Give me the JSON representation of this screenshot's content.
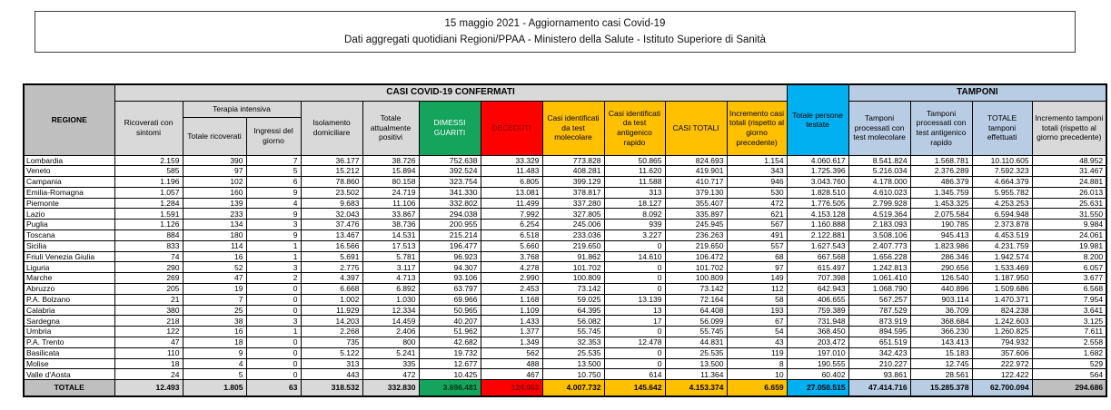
{
  "title_box": {
    "line1": "15 maggio 2021 - Aggiornamento casi Covid-19",
    "line2": "Dati aggregati quotidiani Regioni/PPAA - Ministero della Salute - Istituto Superiore di Sanità"
  },
  "colors": {
    "green": "#14a45c",
    "red": "#fe0000",
    "red_text": "#7f0000",
    "yellow": "#ffc000",
    "cyan": "#00b0f0",
    "light_blue": "#b8cce4",
    "gray_header": "#bfbfbf",
    "light_gray": "#d9d9d9"
  },
  "table": {
    "headers": {
      "regione": "REGIONE",
      "casi_band": "CASI COVID-19 CONFERMATI",
      "tamponi_band": "TAMPONI",
      "ricoverati": "Ricoverati con sintomi",
      "terapia_intensiva": "Terapia intensiva",
      "ti_totale": "Totale ricoverati",
      "ti_ingressi": "Ingressi del giorno",
      "isolamento": "Isolamento domiciliare",
      "attualmente_positivi": "Totale attualmente positivi",
      "dimessi_guariti": "DIMESSI GUARITI",
      "deceduti": "DECEDUTI",
      "casi_molecolare": "Casi identificati da test molecolare",
      "casi_antigenico": "Casi identificati da test antigenico rapido",
      "casi_totali": "CASI TOTALI",
      "incremento_casi": "Incremento casi totali (rispetto al giorno precedente)",
      "persone_testate": "Totale persone testate",
      "tamponi_molecolare": "Tamponi processati con test molecolare",
      "tamponi_antigenico": "Tamponi processati con test antigenico rapido",
      "tamponi_totale": "TOTALE tamponi effettuati",
      "incremento_tamponi": "Incremento tamponi totali (rispetto al giorno precedente)"
    },
    "rows": [
      [
        "Lombardia",
        "2.159",
        "390",
        "7",
        "36.177",
        "38.726",
        "752.638",
        "33.329",
        "773.828",
        "50.865",
        "824.693",
        "1.154",
        "4.060.617",
        "8.541.824",
        "1.568.781",
        "10.110.605",
        "48.952"
      ],
      [
        "Veneto",
        "585",
        "97",
        "5",
        "15.212",
        "15.894",
        "392.524",
        "11.483",
        "408.281",
        "11.620",
        "419.901",
        "343",
        "1.725.396",
        "5.216.034",
        "2.376.289",
        "7.592.323",
        "31.467"
      ],
      [
        "Campania",
        "1.196",
        "102",
        "6",
        "78.860",
        "80.158",
        "323.754",
        "6.805",
        "399.129",
        "11.588",
        "410.717",
        "946",
        "3.043.760",
        "4.178.000",
        "486.379",
        "4.664.379",
        "24.881"
      ],
      [
        "Emilia-Romagna",
        "1.057",
        "160",
        "9",
        "23.502",
        "24.719",
        "341.330",
        "13.081",
        "378.817",
        "313",
        "379.130",
        "530",
        "1.828.510",
        "4.610.023",
        "1.345.759",
        "5.955.782",
        "26.013"
      ],
      [
        "Piemonte",
        "1.284",
        "139",
        "4",
        "9.683",
        "11.106",
        "332.802",
        "11.499",
        "337.280",
        "18.127",
        "355.407",
        "472",
        "1.776.505",
        "2.799.928",
        "1.453.325",
        "4.253.253",
        "25.631"
      ],
      [
        "Lazio",
        "1.591",
        "233",
        "9",
        "32.043",
        "33.867",
        "294.038",
        "7.992",
        "327.805",
        "8.092",
        "335.897",
        "621",
        "4.153.128",
        "4.519.364",
        "2.075.584",
        "6.594.948",
        "31.550"
      ],
      [
        "Puglia",
        "1.126",
        "134",
        "3",
        "37.476",
        "38.736",
        "200.955",
        "6.254",
        "245.006",
        "939",
        "245.945",
        "567",
        "1.160.888",
        "2.183.093",
        "190.785",
        "2.373.878",
        "9.984"
      ],
      [
        "Toscana",
        "884",
        "180",
        "9",
        "13.467",
        "14.531",
        "215.214",
        "6.518",
        "233.036",
        "3.227",
        "236.263",
        "491",
        "2.122.881",
        "3.508.106",
        "945.413",
        "4.453.519",
        "24.061"
      ],
      [
        "Sicilia",
        "833",
        "114",
        "1",
        "16.566",
        "17.513",
        "196.477",
        "5.660",
        "219.650",
        "0",
        "219.650",
        "557",
        "1.627.543",
        "2.407.773",
        "1.823.986",
        "4.231.759",
        "19.981"
      ],
      [
        "Friuli Venezia Giulia",
        "74",
        "16",
        "1",
        "5.691",
        "5.781",
        "96.923",
        "3.768",
        "91.862",
        "14.610",
        "106.472",
        "68",
        "667.568",
        "1.656.228",
        "286.346",
        "1.942.574",
        "8.200"
      ],
      [
        "Liguria",
        "290",
        "52",
        "3",
        "2.775",
        "3.117",
        "94.307",
        "4.278",
        "101.702",
        "0",
        "101.702",
        "97",
        "615.497",
        "1.242.813",
        "290.656",
        "1.533.469",
        "6.057"
      ],
      [
        "Marche",
        "269",
        "47",
        "2",
        "4.397",
        "4.713",
        "93.106",
        "2.990",
        "100.809",
        "0",
        "100.809",
        "149",
        "707.398",
        "1.061.410",
        "126.540",
        "1.187.950",
        "3.677"
      ],
      [
        "Abruzzo",
        "205",
        "19",
        "0",
        "6.668",
        "6.892",
        "63.797",
        "2.453",
        "73.142",
        "0",
        "73.142",
        "112",
        "642.943",
        "1.068.790",
        "440.896",
        "1.509.686",
        "6.568"
      ],
      [
        "P.A. Bolzano",
        "21",
        "7",
        "0",
        "1.002",
        "1.030",
        "69.966",
        "1.168",
        "59.025",
        "13.139",
        "72.164",
        "58",
        "406.655",
        "567.257",
        "903.114",
        "1.470.371",
        "7.954"
      ],
      [
        "Calabria",
        "380",
        "25",
        "0",
        "11.929",
        "12.334",
        "50.965",
        "1.109",
        "64.395",
        "13",
        "64.408",
        "193",
        "759.389",
        "787.529",
        "36.709",
        "824.238",
        "3.641"
      ],
      [
        "Sardegna",
        "218",
        "38",
        "3",
        "14.203",
        "14.459",
        "40.207",
        "1.433",
        "56.082",
        "17",
        "56.099",
        "67",
        "731.948",
        "873.919",
        "368.684",
        "1.242.603",
        "3.125"
      ],
      [
        "Umbria",
        "122",
        "16",
        "1",
        "2.268",
        "2.406",
        "51.962",
        "1.377",
        "55.745",
        "0",
        "55.745",
        "54",
        "368.450",
        "894.595",
        "366.230",
        "1.260.825",
        "7.611"
      ],
      [
        "P.A. Trento",
        "47",
        "18",
        "0",
        "735",
        "800",
        "42.682",
        "1.349",
        "32.353",
        "12.478",
        "44.831",
        "43",
        "203.472",
        "651.519",
        "143.413",
        "794.932",
        "2.558"
      ],
      [
        "Basilicata",
        "110",
        "9",
        "0",
        "5.122",
        "5.241",
        "19.732",
        "562",
        "25.535",
        "0",
        "25.535",
        "119",
        "197.010",
        "342.423",
        "15.183",
        "357.606",
        "1.682"
      ],
      [
        "Molise",
        "18",
        "4",
        "0",
        "313",
        "335",
        "12.677",
        "488",
        "13.500",
        "0",
        "13.500",
        "8",
        "190.555",
        "210.227",
        "12.745",
        "222.972",
        "529"
      ],
      [
        "Valle d'Aosta",
        "24",
        "5",
        "0",
        "443",
        "472",
        "10.425",
        "467",
        "10.750",
        "614",
        "11.364",
        "10",
        "60.402",
        "93.861",
        "28.561",
        "122.422",
        "564"
      ]
    ],
    "total_row": [
      "TOTALE",
      "12.493",
      "1.805",
      "63",
      "318.532",
      "332.830",
      "3.696.481",
      "124.063",
      "4.007.732",
      "145.642",
      "4.153.374",
      "6.659",
      "27.050.515",
      "47.414.716",
      "15.285.378",
      "62.700.094",
      "294.686"
    ]
  }
}
